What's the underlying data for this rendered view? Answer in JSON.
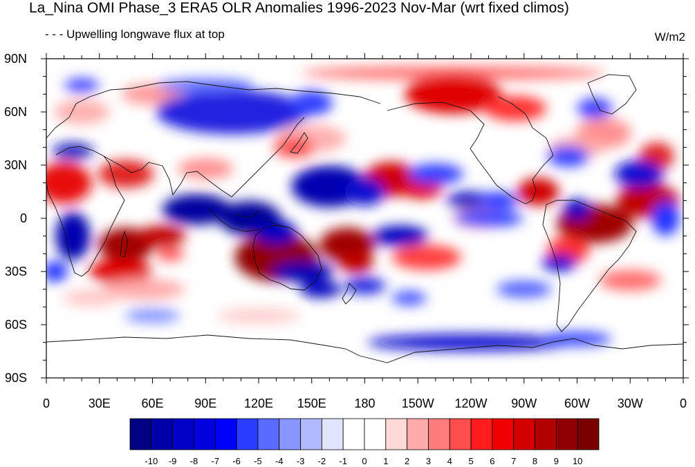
{
  "figure": {
    "title": "La_Nina OMI Phase_3 ERA5 OLR Anomalies 1996-2023 Nov-Mar (wrt fixed climos)",
    "left_string": "- - - Upwelling longwave flux at top",
    "right_string": "W/m2"
  },
  "map": {
    "projection": "cylindrical-equidistant",
    "lon_range": [
      0,
      360
    ],
    "lat_range": [
      -90,
      90
    ],
    "x_tick_labels": [
      "0",
      "30E",
      "60E",
      "90E",
      "120E",
      "150E",
      "180",
      "150W",
      "120W",
      "90W",
      "60W",
      "30W",
      "0"
    ],
    "y_tick_labels": [
      "90N",
      "60N",
      "30N",
      "0",
      "30S",
      "60S",
      "90S"
    ]
  },
  "colorbar": {
    "labels": [
      "-10",
      "-9",
      "-8",
      "-7",
      "-6",
      "-5",
      "-4",
      "-3",
      "-2",
      "-1",
      "0",
      "1",
      "2",
      "3",
      "4",
      "5",
      "6",
      "7",
      "8",
      "9",
      "10"
    ],
    "colors": [
      "#000080",
      "#0000a8",
      "#0000c8",
      "#0000e0",
      "#0000ff",
      "#2a3cff",
      "#5a6cff",
      "#8a96ff",
      "#b0b8ff",
      "#e0e4ff",
      "#ffffff",
      "#ffffff",
      "#ffd8d8",
      "#ffaaaa",
      "#ff7c7c",
      "#ff4c4c",
      "#ff1c1c",
      "#f00000",
      "#d40000",
      "#b40000",
      "#900000",
      "#780000"
    ]
  },
  "anomaly_features": [
    {
      "sign": "negative",
      "lon": 170,
      "lat": 15
    },
    {
      "sign": "negative",
      "lon": 120,
      "lat": 0
    },
    {
      "sign": "negative",
      "lon": 90,
      "lat": 5
    },
    {
      "sign": "negative",
      "lon": 20,
      "lat": -10
    },
    {
      "sign": "negative",
      "lon": 240,
      "lat": 10
    },
    {
      "sign": "negative",
      "lon": 300,
      "lat": 5
    },
    {
      "sign": "negative",
      "lon": 110,
      "lat": 60
    },
    {
      "sign": "negative",
      "lon": 150,
      "lat": -30
    },
    {
      "sign": "negative",
      "lon": 230,
      "lat": -75
    },
    {
      "sign": "positive",
      "lon": 50,
      "lat": -15
    },
    {
      "sign": "positive",
      "lon": 130,
      "lat": -22
    },
    {
      "sign": "positive",
      "lon": 170,
      "lat": -15
    },
    {
      "sign": "positive",
      "lon": 315,
      "lat": -5
    },
    {
      "sign": "positive",
      "lon": 225,
      "lat": 75
    },
    {
      "sign": "positive",
      "lon": 195,
      "lat": 20
    },
    {
      "sign": "positive",
      "lon": 10,
      "lat": 20
    },
    {
      "sign": "positive",
      "lon": 280,
      "lat": 15
    }
  ]
}
